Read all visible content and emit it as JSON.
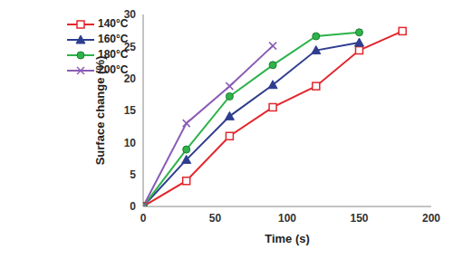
{
  "chart_data": {
    "type": "line",
    "x_label": "Time (s)",
    "y_label": "Surface change (%)",
    "xlim": [
      0,
      200
    ],
    "xticks": [
      0,
      50,
      100,
      150,
      200
    ],
    "ylim": [
      0,
      30
    ],
    "yticks": [
      0,
      5,
      10,
      15,
      20,
      25,
      30
    ],
    "grid": false,
    "legend": "top-left",
    "series": [
      {
        "name": "140°C",
        "color": "#e3262d",
        "marker": "square",
        "x": [
          0,
          30,
          60,
          90,
          120,
          150,
          180
        ],
        "values": [
          0,
          4,
          11,
          15.5,
          18.8,
          24.4,
          27.4
        ]
      },
      {
        "name": "160°C",
        "color": "#2e3d8f",
        "marker": "triangle",
        "x": [
          0,
          30,
          60,
          90,
          120,
          150
        ],
        "values": [
          0,
          7.3,
          14.1,
          19,
          24.4,
          25.6
        ]
      },
      {
        "name": "180°C",
        "color": "#2db34a",
        "marker": "circle",
        "x": [
          0,
          30,
          60,
          90,
          120,
          150
        ],
        "values": [
          0,
          8.9,
          17.2,
          22.1,
          26.6,
          27.2
        ]
      },
      {
        "name": "200°C",
        "color": "#8a5bb5",
        "marker": "x",
        "x": [
          0,
          30,
          60,
          90
        ],
        "values": [
          0,
          13,
          18.8,
          25.1
        ]
      }
    ]
  }
}
